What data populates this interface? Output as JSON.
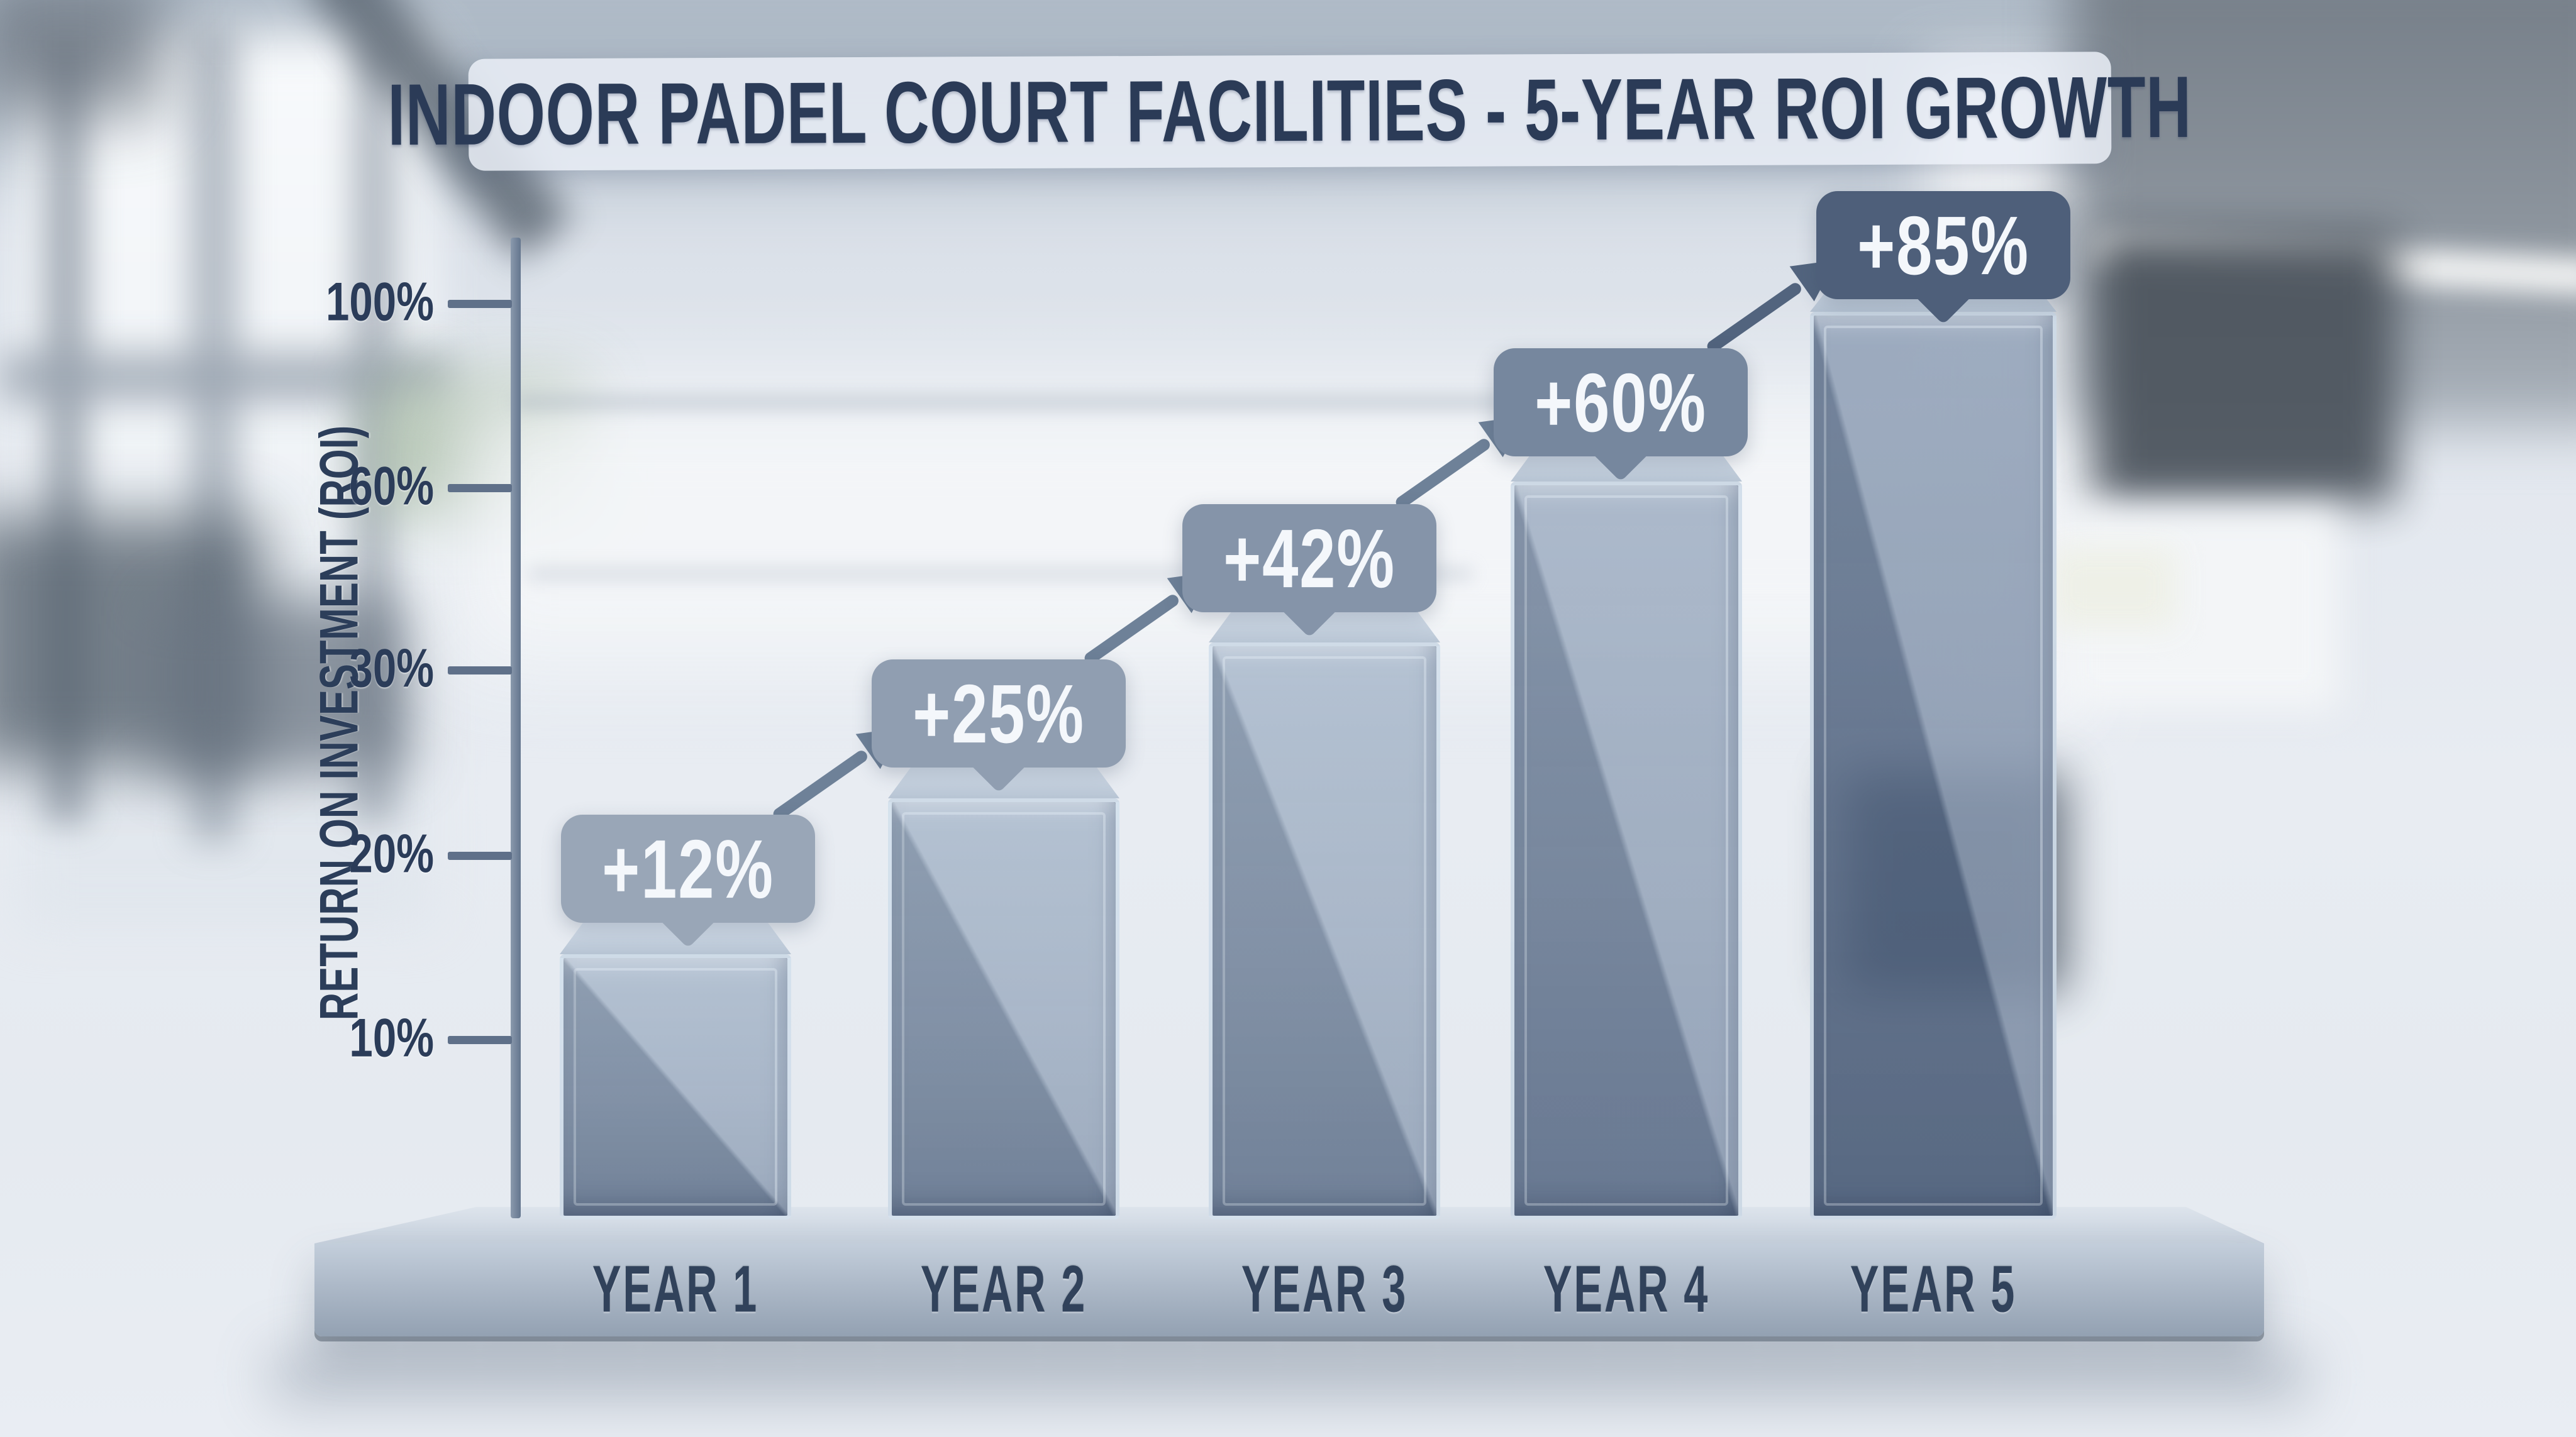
{
  "title": "INDOOR PADEL COURT FACILITIES - 5-YEAR ROI GROWTH",
  "y_axis": {
    "label": "RETURN ON INVESTMENT (ROI)",
    "ticks_top_to_bottom": [
      "100%",
      "60%",
      "30%",
      "20%",
      "10%"
    ]
  },
  "x_axis": {
    "labels": [
      "YEAR 1",
      "YEAR 2",
      "YEAR 3",
      "YEAR 4",
      "YEAR 5"
    ]
  },
  "badges": [
    "+12%",
    "+25%",
    "+42%",
    "+60%",
    "+85%"
  ],
  "chart_data": {
    "type": "bar",
    "title": "INDOOR PADEL COURT FACILITIES - 5-YEAR ROI GROWTH",
    "categories": [
      "YEAR 1",
      "YEAR 2",
      "YEAR 3",
      "YEAR 4",
      "YEAR 5"
    ],
    "values": [
      12,
      25,
      42,
      60,
      85
    ],
    "value_labels": [
      "+12%",
      "+25%",
      "+42%",
      "+60%",
      "+85%"
    ],
    "xlabel": "",
    "ylabel": "RETURN ON INVESTMENT (ROI)",
    "y_tick_labels": [
      "10%",
      "20%",
      "30%",
      "60%",
      "100%"
    ],
    "ylim": [
      0,
      110
    ],
    "grid": false,
    "legend": false,
    "annotations": "rising diagonal arrows between consecutive value badges; glassy 3D bars on a pedestal platform"
  },
  "colors": {
    "badge_backgrounds": [
      "#99a6b7",
      "#909eb1",
      "#8594a9",
      "#76879e",
      "#4e5f7a"
    ],
    "badge_text": "#f4f7fb",
    "arrow": "#6e8198",
    "arrow_last": "#52647e",
    "axis": "#64768e",
    "tick_text": "#2b3c59",
    "title_text": "#2b3b57",
    "year_text": "#31425b",
    "bar_glass": "#7b8da7",
    "platform": "#aeb9c8"
  }
}
